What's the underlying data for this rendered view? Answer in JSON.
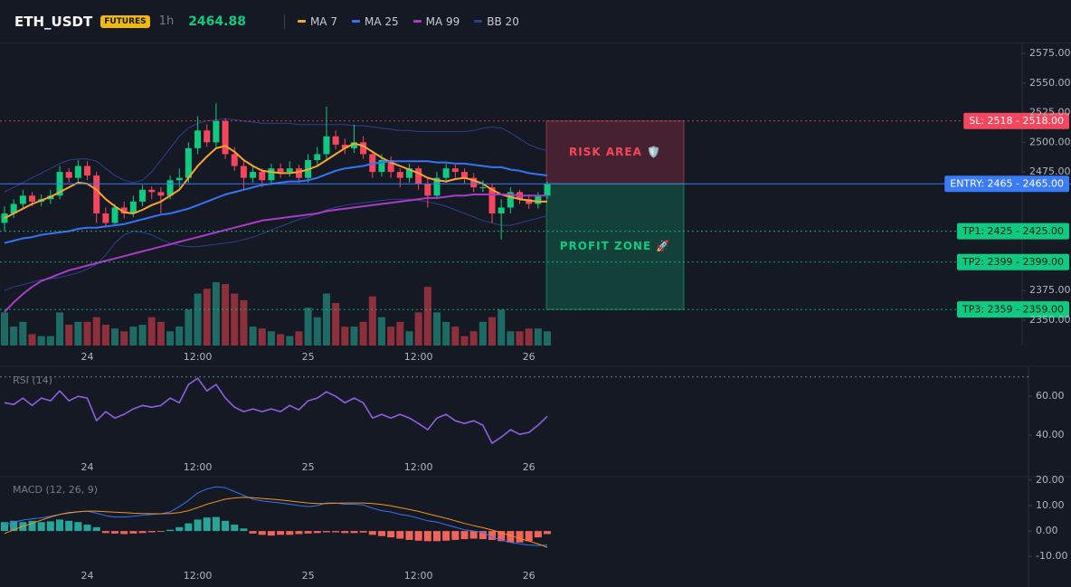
{
  "header": {
    "symbol": "ETH_USDT",
    "badge": "FUTURES",
    "interval": "1h",
    "price": "2464.88"
  },
  "chart_data": [
    {
      "type": "candlestick",
      "categories": [
        null,
        null,
        null,
        null,
        null,
        null,
        null,
        null,
        null,
        "24",
        null,
        null,
        null,
        null,
        null,
        null,
        null,
        null,
        null,
        null,
        null,
        "12:00",
        null,
        null,
        null,
        null,
        null,
        null,
        null,
        null,
        null,
        null,
        null,
        "25",
        null,
        null,
        null,
        null,
        null,
        null,
        null,
        null,
        null,
        null,
        null,
        "12:00",
        null,
        null,
        null,
        null,
        null,
        null,
        null,
        null,
        null,
        null,
        null,
        "26",
        null,
        null
      ],
      "open": [
        2432,
        2440,
        2448,
        2455,
        2450,
        2452,
        2455,
        2475,
        2470,
        2480,
        2472,
        2440,
        2432,
        2445,
        2440,
        2450,
        2460,
        2458,
        2455,
        2468,
        2470,
        2495,
        2510,
        2500,
        2518,
        2490,
        2480,
        2470,
        2475,
        2468,
        2478,
        2475,
        2478,
        2470,
        2485,
        2490,
        2505,
        2498,
        2495,
        2500,
        2490,
        2475,
        2485,
        2475,
        2470,
        2478,
        2465,
        2455,
        2470,
        2478,
        2475,
        2470,
        2462,
        2462,
        2440,
        2445,
        2458,
        2452,
        2448,
        2455
      ],
      "high": [
        2446,
        2452,
        2460,
        2458,
        2456,
        2460,
        2480,
        2478,
        2485,
        2484,
        2475,
        2445,
        2448,
        2450,
        2455,
        2464,
        2463,
        2462,
        2472,
        2478,
        2500,
        2522,
        2515,
        2533,
        2520,
        2496,
        2484,
        2480,
        2478,
        2482,
        2482,
        2484,
        2481,
        2490,
        2496,
        2530,
        2510,
        2503,
        2515,
        2505,
        2493,
        2490,
        2488,
        2478,
        2482,
        2480,
        2470,
        2475,
        2482,
        2481,
        2478,
        2474,
        2468,
        2465,
        2452,
        2462,
        2460,
        2456,
        2458,
        2467
      ],
      "low": [
        2425,
        2436,
        2444,
        2446,
        2446,
        2448,
        2452,
        2466,
        2467,
        2468,
        2432,
        2428,
        2430,
        2436,
        2437,
        2446,
        2452,
        2440,
        2452,
        2462,
        2466,
        2490,
        2496,
        2496,
        2486,
        2476,
        2460,
        2466,
        2462,
        2464,
        2470,
        2471,
        2466,
        2466,
        2481,
        2486,
        2494,
        2490,
        2491,
        2486,
        2470,
        2471,
        2470,
        2462,
        2466,
        2460,
        2445,
        2452,
        2466,
        2470,
        2465,
        2458,
        2458,
        2432,
        2418,
        2440,
        2448,
        2444,
        2444,
        2452
      ],
      "close": [
        2440,
        2448,
        2455,
        2450,
        2452,
        2455,
        2475,
        2470,
        2480,
        2472,
        2440,
        2432,
        2445,
        2440,
        2450,
        2460,
        2458,
        2455,
        2468,
        2470,
        2495,
        2510,
        2500,
        2518,
        2490,
        2480,
        2470,
        2475,
        2468,
        2478,
        2475,
        2478,
        2470,
        2485,
        2490,
        2505,
        2498,
        2495,
        2500,
        2490,
        2475,
        2485,
        2475,
        2470,
        2478,
        2465,
        2455,
        2470,
        2478,
        2475,
        2470,
        2462,
        2462,
        2440,
        2445,
        2458,
        2452,
        2448,
        2455,
        2464.88
      ],
      "up_color": "#0ecb81",
      "down_color": "#f6465d",
      "volume": {
        "values": [
          35,
          20,
          25,
          12,
          10,
          10,
          35,
          22,
          25,
          25,
          30,
          22,
          18,
          15,
          20,
          22,
          30,
          25,
          15,
          20,
          38,
          55,
          60,
          67,
          65,
          55,
          48,
          20,
          18,
          15,
          12,
          10,
          15,
          40,
          30,
          55,
          45,
          20,
          20,
          25,
          52,
          30,
          20,
          25,
          15,
          35,
          62,
          35,
          25,
          20,
          10,
          15,
          25,
          30,
          38,
          15,
          15,
          18,
          18,
          15
        ],
        "up_color": "#1d6b64",
        "down_color": "#8e2f3c"
      },
      "series": [
        {
          "name": "MA 7",
          "color": "#f7a531",
          "values": [
            2436,
            2440,
            2444,
            2448,
            2451,
            2454,
            2458,
            2462,
            2466,
            2465,
            2460,
            2452,
            2446,
            2441,
            2440,
            2443,
            2447,
            2450,
            2455,
            2460,
            2470,
            2480,
            2488,
            2495,
            2497,
            2492,
            2485,
            2480,
            2476,
            2475,
            2474,
            2474,
            2475,
            2477,
            2480,
            2485,
            2490,
            2495,
            2499,
            2497,
            2492,
            2487,
            2483,
            2480,
            2477,
            2474,
            2470,
            2468,
            2467,
            2469,
            2470,
            2468,
            2465,
            2460,
            2456,
            2454,
            2452,
            2451,
            2450,
            2450
          ]
        },
        {
          "name": "MA 25",
          "color": "#3573f5",
          "values": [
            2415,
            2417,
            2419,
            2420,
            2422,
            2423,
            2424,
            2425,
            2427,
            2428,
            2428,
            2429,
            2430,
            2431,
            2433,
            2435,
            2437,
            2439,
            2440,
            2442,
            2444,
            2447,
            2450,
            2453,
            2456,
            2458,
            2460,
            2462,
            2464,
            2465,
            2466,
            2467,
            2467,
            2468,
            2470,
            2473,
            2476,
            2478,
            2479,
            2480,
            2482,
            2483,
            2484,
            2484,
            2484,
            2484,
            2484,
            2483,
            2483,
            2482,
            2482,
            2481,
            2480,
            2479,
            2479,
            2477,
            2476,
            2474,
            2473,
            2472
          ]
        },
        {
          "name": "MA 99",
          "color": "#a83cc4",
          "values": [
            2357,
            2365,
            2372,
            2378,
            2383,
            2386,
            2389,
            2392,
            2394,
            2396,
            2398,
            2400,
            2402,
            2404,
            2406,
            2408,
            2410,
            2412,
            2414,
            2416,
            2418,
            2420,
            2422,
            2424,
            2426,
            2428,
            2430,
            2432,
            2434,
            2435,
            2436,
            2437,
            2438,
            2439,
            2440,
            2442,
            2443,
            2444,
            2445,
            2446,
            2447,
            2448,
            2449,
            2450,
            2451,
            2452,
            2453,
            2453,
            2454,
            2455,
            2455,
            2456,
            2456,
            2456,
            2456,
            2456,
            2455,
            2455,
            2455,
            2455
          ]
        }
      ],
      "bollinger": {
        "name": "BB 20",
        "color": "#2c3f8f",
        "upper": [
          2458,
          2462,
          2466,
          2470,
          2474,
          2478,
          2482,
          2485,
          2486,
          2486,
          2484,
          2478,
          2472,
          2468,
          2466,
          2468,
          2475,
          2485,
          2495,
          2505,
          2512,
          2516,
          2518,
          2519,
          2520,
          2519,
          2518,
          2517,
          2516,
          2516,
          2516,
          2516,
          2515,
          2515,
          2515,
          2515,
          2515,
          2515,
          2514,
          2514,
          2513,
          2512,
          2511,
          2510,
          2510,
          2509,
          2509,
          2509,
          2509,
          2509,
          2509,
          2510,
          2512,
          2513,
          2512,
          2508,
          2503,
          2498,
          2495,
          2493
        ],
        "lower": [
          2375,
          2378,
          2380,
          2382,
          2384,
          2385,
          2386,
          2388,
          2390,
          2393,
          2397,
          2405,
          2415,
          2422,
          2425,
          2424,
          2422,
          2418,
          2415,
          2413,
          2412,
          2412,
          2413,
          2414,
          2415,
          2416,
          2418,
          2420,
          2423,
          2426,
          2429,
          2432,
          2435,
          2437,
          2440,
          2443,
          2445,
          2447,
          2448,
          2449,
          2450,
          2451,
          2452,
          2452,
          2452,
          2451,
          2450,
          2448,
          2446,
          2443,
          2440,
          2437,
          2434,
          2432,
          2430,
          2430,
          2432,
          2434,
          2436,
          2438
        ]
      },
      "ylim": [
        2328.6,
        2583.4
      ],
      "yticks": [
        {
          "value": 2575,
          "label": "2575.00"
        },
        {
          "value": 2550,
          "label": "2550.00"
        },
        {
          "value": 2525,
          "label": "2525.00"
        },
        {
          "value": 2500,
          "label": "2500.00"
        },
        {
          "value": 2475,
          "label": "2475.00"
        },
        {
          "value": 2375,
          "label": "2375.00"
        },
        {
          "value": 2350,
          "label": "2350.00"
        }
      ],
      "price_lines": [
        {
          "label": "SL: 2518 - 2518.00",
          "value": 2518,
          "color": "#f6465d",
          "text_color": "#ffffff",
          "style": "dotted"
        },
        {
          "label": "ENTRY: 2465 - 2465.00",
          "value": 2465,
          "color": "#3b7bf6",
          "text_color": "#ffffff",
          "style": "solid"
        },
        {
          "label": "TP1: 2425 - 2425.00",
          "value": 2425,
          "color": "#0ecb81",
          "text_color": "#0b1a14",
          "style": "dotted"
        },
        {
          "label": "TP2: 2399 - 2399.00",
          "value": 2399,
          "color": "#0ecb81",
          "text_color": "#0b1a14",
          "style": "dotted"
        },
        {
          "label": "TP3: 2359 - 2359.00",
          "value": 2359,
          "color": "#0ecb81",
          "text_color": "#0b1a14",
          "style": "dotted"
        }
      ],
      "zones": [
        {
          "label": "RISK AREA 🛡️",
          "range": [
            2518,
            2465
          ],
          "color": "#f6465d"
        },
        {
          "label": "PROFIT ZONE 🚀",
          "range": [
            2465,
            2359
          ],
          "color": "#0ecb81"
        }
      ]
    },
    {
      "type": "line",
      "categories": [
        null,
        null,
        null,
        null,
        null,
        null,
        null,
        null,
        null,
        "24",
        null,
        null,
        null,
        null,
        null,
        null,
        null,
        null,
        null,
        null,
        null,
        "12:00",
        null,
        null,
        null,
        null,
        null,
        null,
        null,
        null,
        null,
        null,
        null,
        "25",
        null,
        null,
        null,
        null,
        null,
        null,
        null,
        null,
        null,
        null,
        null,
        "12:00",
        null,
        null,
        null,
        null,
        null,
        null,
        null,
        null,
        null,
        null,
        null,
        "26",
        null,
        null
      ],
      "series": [
        {
          "name": "RSI (14)",
          "color": "#8e5fe0",
          "values": [
            56.7,
            55.8,
            59.1,
            55.3,
            59.1,
            57.7,
            62.8,
            57.7,
            60,
            59.1,
            47.4,
            52.1,
            48.8,
            50.7,
            53.5,
            55.3,
            54.4,
            55.3,
            59.1,
            56.7,
            66.1,
            69.3,
            62.8,
            66.1,
            59.1,
            54.4,
            52.1,
            53.5,
            52.1,
            53.5,
            52.1,
            55.3,
            53,
            57.7,
            59.1,
            62.3,
            60,
            56.7,
            59.1,
            56.7,
            48.8,
            50.7,
            48.8,
            50.7,
            48.8,
            46,
            42.8,
            48.8,
            50.7,
            47.4,
            46,
            47.4,
            45.1,
            35.8,
            39,
            42.8,
            40.4,
            41.4,
            45.1,
            49.7
          ]
        }
      ],
      "levels": [
        70
      ],
      "ylim": [
        20,
        75
      ],
      "yticks": [
        {
          "value": 60,
          "label": "60.00"
        },
        {
          "value": 40,
          "label": "40.00"
        }
      ]
    },
    {
      "type": "macd",
      "title": "MACD (12, 26, 9)",
      "categories": [
        null,
        null,
        null,
        null,
        null,
        null,
        null,
        null,
        null,
        "24",
        null,
        null,
        null,
        null,
        null,
        null,
        null,
        null,
        null,
        null,
        null,
        "12:00",
        null,
        null,
        null,
        null,
        null,
        null,
        null,
        null,
        null,
        null,
        null,
        "25",
        null,
        null,
        null,
        null,
        null,
        null,
        null,
        null,
        null,
        null,
        null,
        "12:00",
        null,
        null,
        null,
        null,
        null,
        null,
        null,
        null,
        null,
        null,
        null,
        "26",
        null,
        null
      ],
      "histogram": {
        "up_color": "#26a69a",
        "down_color": "#f0645a",
        "values": [
          3.5,
          4,
          3.5,
          4,
          3.5,
          3.8,
          4.5,
          4,
          3.5,
          2.5,
          1.5,
          -0.8,
          -1,
          -1.2,
          -1,
          -0.8,
          -0.5,
          -0.3,
          0.5,
          1.5,
          3,
          4.5,
          5.3,
          5.5,
          4,
          2.5,
          1,
          -1,
          -1.5,
          -1.8,
          -1.5,
          -1.5,
          -1.2,
          -1,
          -0.8,
          -0.5,
          -0.5,
          -0.8,
          -0.8,
          -0.6,
          -1.5,
          -2,
          -2.5,
          -3,
          -3.5,
          -3.8,
          -4,
          -4,
          -3.8,
          -3.5,
          -3.2,
          -3,
          -3.2,
          -3.5,
          -4,
          -4.5,
          -4.5,
          -4,
          -2.5,
          -1.2
        ]
      },
      "series": [
        {
          "color": "#3573f5",
          "values": [
            2.5,
            3.5,
            4.3,
            4.8,
            5.2,
            5.8,
            6.5,
            7,
            7.5,
            7.8,
            7,
            6,
            5.5,
            5.5,
            5.8,
            6.2,
            6.5,
            6.8,
            7.5,
            9.6,
            12,
            15,
            16.5,
            17.4,
            17,
            15.5,
            14,
            12.5,
            11.8,
            11.4,
            11,
            10.5,
            10,
            9.6,
            10,
            11,
            11,
            10.5,
            10.5,
            10.2,
            9,
            8,
            7.5,
            6.5,
            6,
            5,
            4,
            3.5,
            2.5,
            1.5,
            0.5,
            0,
            -0.5,
            -2.5,
            -3.5,
            -4.5,
            -5,
            -5.5,
            -5.7,
            -5.5
          ]
        },
        {
          "color": "#f7931a",
          "values": [
            -1,
            0.5,
            1.8,
            3,
            4.3,
            5.5,
            6.5,
            7.2,
            7.6,
            7.8,
            7.8,
            7.6,
            7.4,
            7.2,
            7,
            6.9,
            6.8,
            6.8,
            6.9,
            7.2,
            8,
            9.2,
            10.5,
            11.5,
            12.5,
            13,
            13.2,
            13.1,
            12.8,
            12.5,
            12.2,
            11.8,
            11.4,
            11,
            10.8,
            10.8,
            10.9,
            11,
            11,
            11,
            10.8,
            10.4,
            9.9,
            9.2,
            8.5,
            7.7,
            6.8,
            5.9,
            5,
            4,
            3,
            2.1,
            1.3,
            0.4,
            -0.7,
            -1.8,
            -2.9,
            -4,
            -5.1,
            -6.4
          ]
        }
      ],
      "ylim": [
        -22,
        21
      ],
      "yticks": [
        {
          "value": 20,
          "label": "20.00"
        },
        {
          "value": 10,
          "label": "10.00"
        },
        {
          "value": 0,
          "label": "0.00"
        },
        {
          "value": -10,
          "label": "-10.00"
        }
      ]
    }
  ]
}
